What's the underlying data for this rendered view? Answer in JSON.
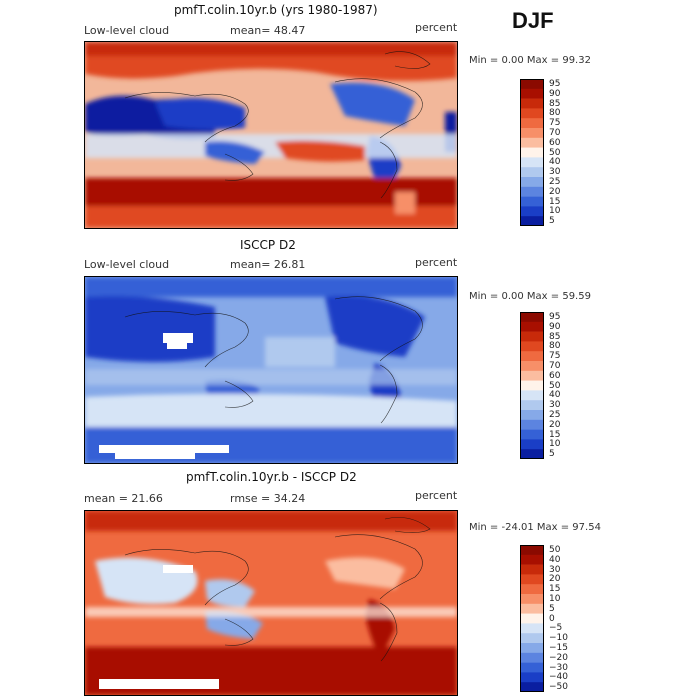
{
  "season": "DJF",
  "panels": [
    {
      "id": "model",
      "title": "pmfT.colin.10yr.b (yrs 1980-1987)",
      "left_label": "Low-level cloud",
      "mid_label": "mean=  48.47",
      "right_label": "percent",
      "minmax": "Min =   0.00 Max =  99.32",
      "levels": [
        "95",
        "90",
        "85",
        "80",
        "75",
        "70",
        "60",
        "50",
        "40",
        "30",
        "25",
        "20",
        "15",
        "10",
        "5"
      ],
      "colors": [
        "#8b0a00",
        "#a80f00",
        "#c82a0a",
        "#e04820",
        "#ef6a40",
        "#f78f68",
        "#fbbda0",
        "#fff3ea",
        "#d6e4f6",
        "#b0c9ee",
        "#86a9e8",
        "#5c84e0",
        "#3561d6",
        "#1a3ec6",
        "#0a1ea0"
      ]
    },
    {
      "id": "obs",
      "title": "ISCCP D2",
      "left_label": "Low-level cloud",
      "mid_label": "mean=  26.81",
      "right_label": "percent",
      "minmax": "Min =   0.00 Max =  59.59",
      "levels": [
        "95",
        "90",
        "85",
        "80",
        "75",
        "70",
        "60",
        "50",
        "40",
        "30",
        "25",
        "20",
        "15",
        "10",
        "5"
      ],
      "colors": [
        "#8b0a00",
        "#a80f00",
        "#c82a0a",
        "#e04820",
        "#ef6a40",
        "#f78f68",
        "#fbbda0",
        "#fff3ea",
        "#d6e4f6",
        "#b0c9ee",
        "#86a9e8",
        "#5c84e0",
        "#3561d6",
        "#1a3ec6",
        "#0a1ea0"
      ]
    },
    {
      "id": "diff",
      "title": "pmfT.colin.10yr.b - ISCCP D2",
      "left_label": "mean =  21.66",
      "mid_label": "rmse =  34.24",
      "right_label": "percent",
      "minmax": "Min = -24.01 Max =  97.54",
      "levels": [
        "50",
        "40",
        "30",
        "20",
        "15",
        "10",
        "5",
        "0",
        "−5",
        "−10",
        "−15",
        "−20",
        "−30",
        "−40",
        "−50"
      ],
      "colors": [
        "#8b0a00",
        "#a80f00",
        "#c82a0a",
        "#e04820",
        "#ef6a40",
        "#f78f68",
        "#fbbda0",
        "#fff3ea",
        "#d6e4f6",
        "#b0c9ee",
        "#86a9e8",
        "#5c84e0",
        "#3561d6",
        "#1a3ec6",
        "#0a1ea0"
      ]
    }
  ],
  "chart_data": [
    {
      "type": "heatmap",
      "title": "pmfT.colin.10yr.b (yrs 1980-1987)",
      "variable": "Low-level cloud",
      "units": "percent",
      "mean": 48.47,
      "min": 0.0,
      "max": 99.32,
      "contour_levels": [
        5,
        10,
        15,
        20,
        25,
        30,
        40,
        50,
        60,
        70,
        75,
        80,
        85,
        90,
        95
      ]
    },
    {
      "type": "heatmap",
      "title": "ISCCP D2",
      "variable": "Low-level cloud",
      "units": "percent",
      "mean": 26.81,
      "min": 0.0,
      "max": 59.59,
      "contour_levels": [
        5,
        10,
        15,
        20,
        25,
        30,
        40,
        50,
        60,
        70,
        75,
        80,
        85,
        90,
        95
      ]
    },
    {
      "type": "heatmap",
      "title": "pmfT.colin.10yr.b - ISCCP D2",
      "units": "percent",
      "mean": 21.66,
      "rmse": 34.24,
      "min": -24.01,
      "max": 97.54,
      "contour_levels": [
        -50,
        -40,
        -30,
        -20,
        -15,
        -10,
        -5,
        0,
        5,
        10,
        15,
        20,
        30,
        40,
        50
      ]
    }
  ]
}
